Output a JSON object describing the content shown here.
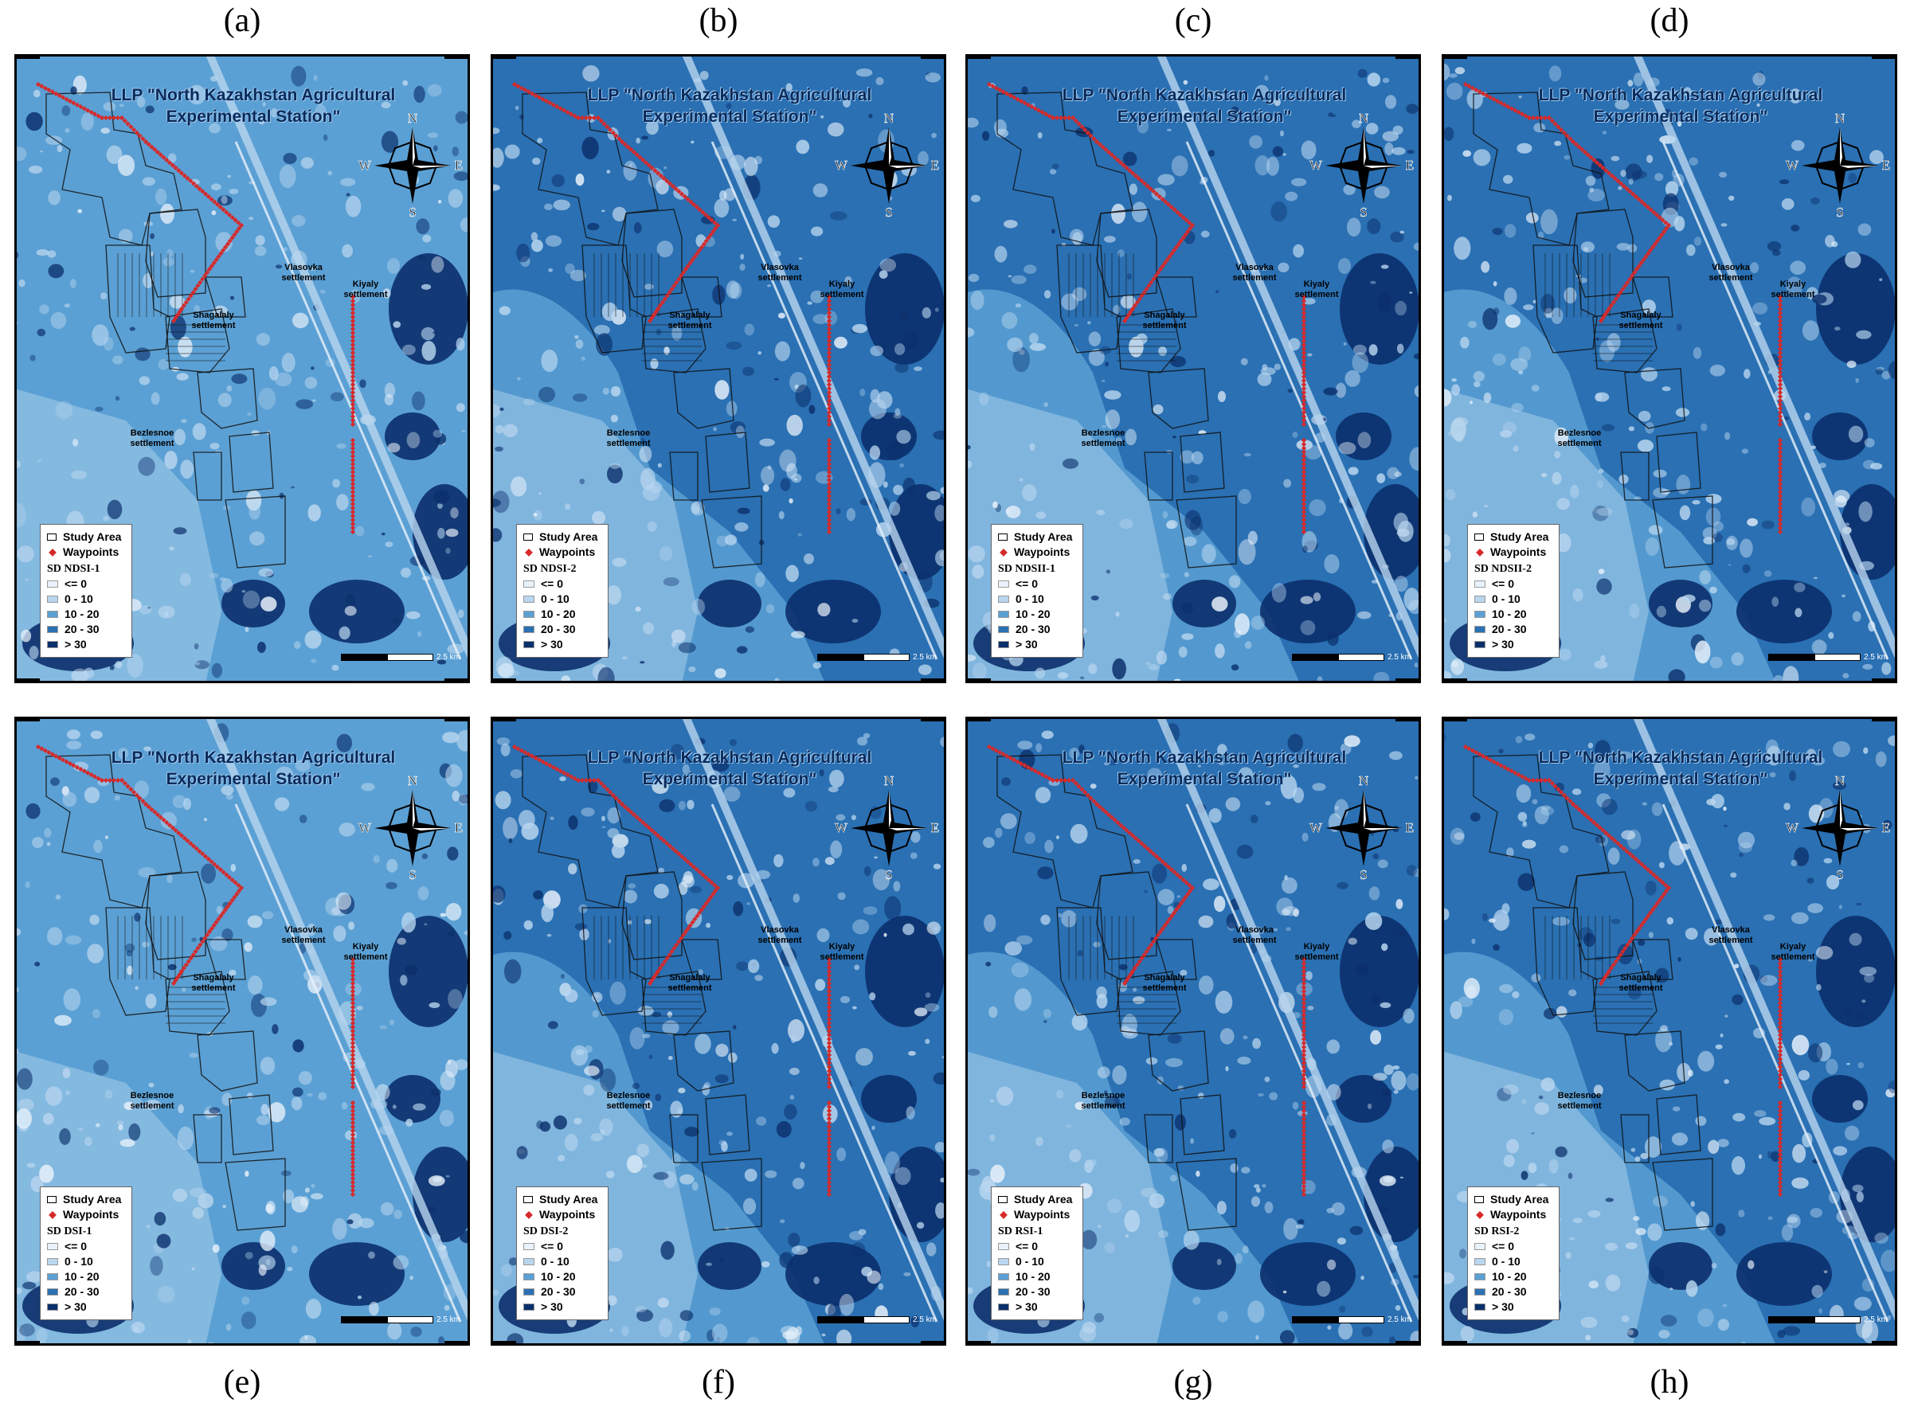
{
  "map_title": "LLP \"North Kazakhstan Agricultural Experimental Station\"",
  "settlements": {
    "vlasovka": "Vlasovka settlement",
    "kiyaly": "Kiyaly settlement",
    "shagalaly": "Shagalaly settlement",
    "bezlesnoe": "Bezlesnoe settlement"
  },
  "compass": {
    "n": "N",
    "e": "E",
    "s": "S",
    "w": "W"
  },
  "legend": {
    "study_area": "Study Area",
    "waypoints": "Waypoints",
    "classes": [
      {
        "label": "<= 0",
        "color": "#e9f2fb"
      },
      {
        "label": "0 - 10",
        "color": "#b9d6ef"
      },
      {
        "label": "10 - 20",
        "color": "#5ba0d4"
      },
      {
        "label": "20 - 30",
        "color": "#2a70b3"
      },
      {
        "label": "> 30",
        "color": "#0b2f6b"
      }
    ]
  },
  "scale_label": "2.5 km",
  "colors": {
    "route": "#d62a2a"
  },
  "panels": [
    {
      "letter": "(a)",
      "index_name": "SD NDSI-1"
    },
    {
      "letter": "(b)",
      "index_name": "SD NDSI-2"
    },
    {
      "letter": "(c)",
      "index_name": "SD NDSII-1"
    },
    {
      "letter": "(d)",
      "index_name": "SD NDSII-2"
    },
    {
      "letter": "(e)",
      "index_name": "SD DSI-1"
    },
    {
      "letter": "(f)",
      "index_name": "SD DSI-2"
    },
    {
      "letter": "(g)",
      "index_name": "SD RSI-1"
    },
    {
      "letter": "(h)",
      "index_name": "SD RSI-2"
    }
  ]
}
